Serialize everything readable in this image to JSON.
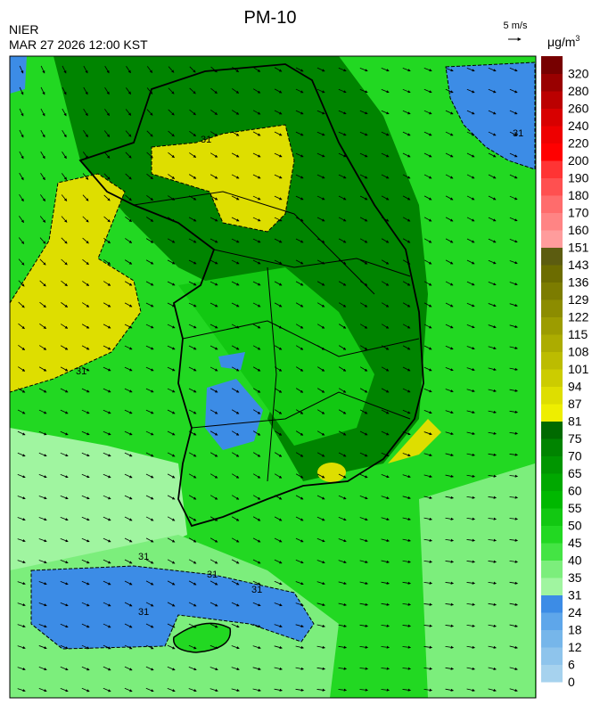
{
  "header": {
    "title": "PM-10",
    "agency": "NIER",
    "datetime": "MAR 27 2026 12:00 KST",
    "wind_scale": "5 m/s",
    "unit": "μg/m",
    "unit_sup": "3"
  },
  "colorbar": {
    "levels": [
      0,
      6,
      12,
      18,
      24,
      31,
      35,
      40,
      45,
      50,
      55,
      60,
      65,
      70,
      75,
      81,
      87,
      94,
      101,
      108,
      115,
      122,
      129,
      136,
      143,
      151,
      160,
      170,
      180,
      190,
      200,
      220,
      240,
      260,
      280,
      320
    ],
    "colors": [
      "#a6d2ee",
      "#8ec4ec",
      "#76b6ea",
      "#5ea6ea",
      "#3c8ce6",
      "#a0f5a0",
      "#7cee7c",
      "#44e444",
      "#22d822",
      "#12c812",
      "#00b800",
      "#00a800",
      "#009600",
      "#008400",
      "#006a00",
      "#eeee00",
      "#dede00",
      "#cccc00",
      "#bcbc00",
      "#acac00",
      "#9c9c00",
      "#8c8c00",
      "#7c7c00",
      "#6c6c00",
      "#5c5c10",
      "#ff9c9c",
      "#ff8484",
      "#ff6c6c",
      "#ff5050",
      "#ff3434",
      "#ff0000",
      "#ee0000",
      "#d80000",
      "#bb0000",
      "#990000",
      "#770000"
    ]
  },
  "contour_labels": [
    "31",
    "31",
    "31",
    "31",
    "31",
    "31",
    "31"
  ]
}
